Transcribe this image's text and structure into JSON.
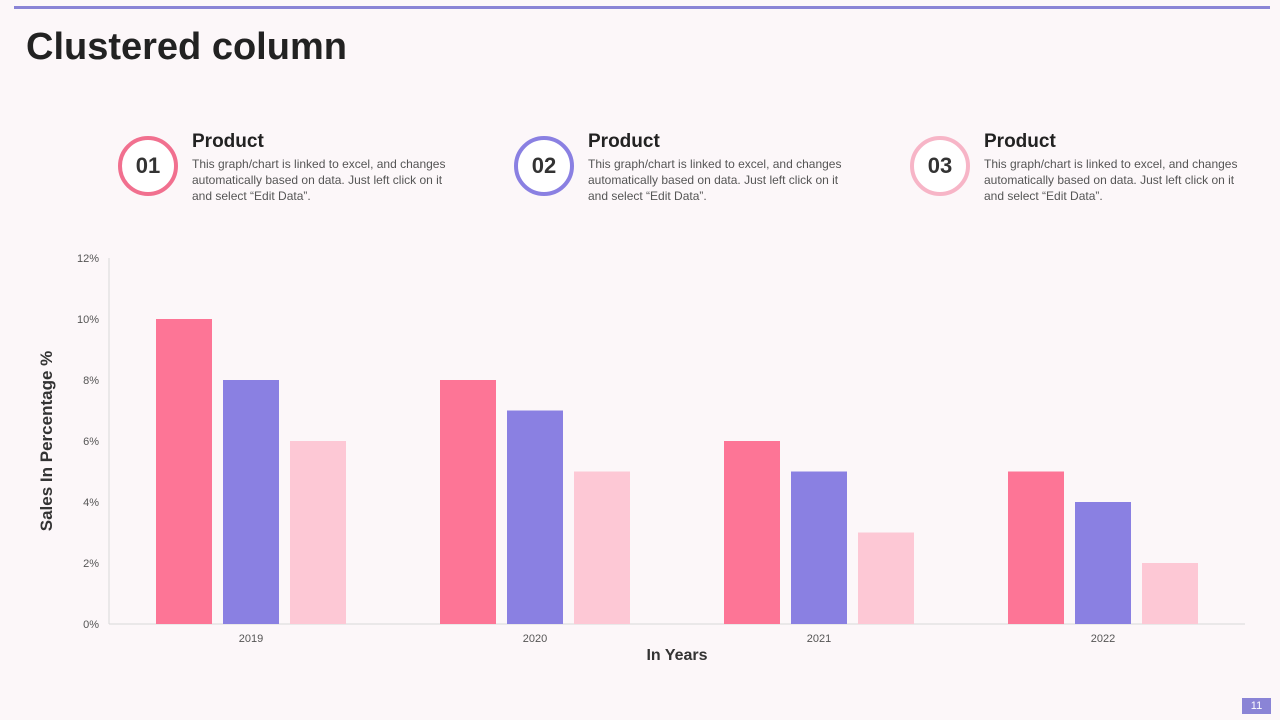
{
  "slide": {
    "title": "Clustered column",
    "page_number": "11"
  },
  "products": [
    {
      "number": "01",
      "title": "Product",
      "description": "This graph/chart is linked to excel, and changes automatically based on data. Just left click on it and select “Edit Data”."
    },
    {
      "number": "02",
      "title": "Product",
      "description": "This graph/chart is linked to excel, and changes automatically based on data. Just left click on it and select “Edit Data”."
    },
    {
      "number": "03",
      "title": "Product",
      "description": "This graph/chart is linked to excel, and changes automatically based on data. Just left click on it and select “Edit Data”."
    }
  ],
  "colors": {
    "accent": "#8a84d6",
    "series1": "#fd7596",
    "series2": "#8a80e2",
    "series3": "#fdc8d5",
    "ring3": "#f7b5c7"
  },
  "chart_data": {
    "type": "bar",
    "title": "",
    "xlabel": "In Years",
    "ylabel": "Sales In Percentage %",
    "categories": [
      "2019",
      "2020",
      "2021",
      "2022"
    ],
    "series": [
      {
        "name": "Product 01",
        "values": [
          10,
          8,
          6,
          5
        ]
      },
      {
        "name": "Product 02",
        "values": [
          8,
          7,
          5,
          4
        ]
      },
      {
        "name": "Product 03",
        "values": [
          6,
          5,
          3,
          2
        ]
      }
    ],
    "ylim": [
      0,
      12
    ],
    "yticks": [
      "0%",
      "2%",
      "4%",
      "6%",
      "8%",
      "10%",
      "12%"
    ],
    "grid": false
  }
}
